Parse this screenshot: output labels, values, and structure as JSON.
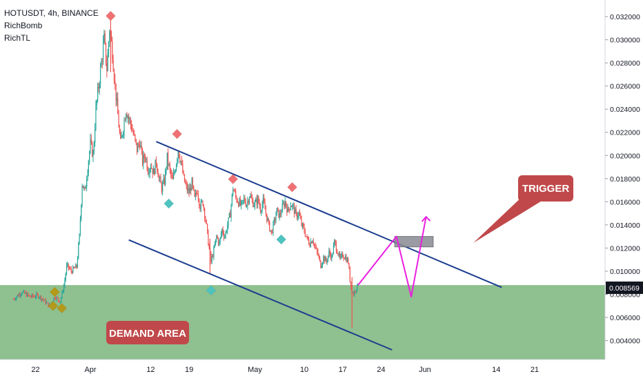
{
  "header": {
    "symbol_line": "HOTUSDT, 4h, BINANCE",
    "indicators": [
      "RichBomb",
      "RichTL"
    ]
  },
  "chart_data": {
    "type": "candlestick",
    "symbol": "HOTUSDT",
    "interval": "4h",
    "exchange": "BINANCE",
    "y_axis": {
      "min": 0.0032,
      "max": 0.0326,
      "ticks": [
        "0.032000",
        "0.030000",
        "0.028000",
        "0.026000",
        "0.024000",
        "0.022000",
        "0.020000",
        "0.018000",
        "0.016000",
        "0.014000",
        "0.012000",
        "0.010000",
        "0.008000",
        "0.006000",
        "0.004000"
      ]
    },
    "x_axis": {
      "ticks": [
        {
          "label": "22",
          "day": -10
        },
        {
          "label": "Apr",
          "day": 0
        },
        {
          "label": "12",
          "day": 11
        },
        {
          "label": "19",
          "day": 18
        },
        {
          "label": "May",
          "day": 30
        },
        {
          "label": "10",
          "day": 39
        },
        {
          "label": "17",
          "day": 46
        },
        {
          "label": "24",
          "day": 53
        },
        {
          "label": "Jun",
          "day": 61
        },
        {
          "label": "14",
          "day": 74
        },
        {
          "label": "21",
          "day": 81
        }
      ]
    },
    "current_price": "0.008569",
    "price_path": [
      [
        -14.0,
        0.0076
      ],
      [
        -12.5,
        0.0082
      ],
      [
        -11.0,
        0.0078
      ],
      [
        -9.5,
        0.0079
      ],
      [
        -8.5,
        0.0075
      ],
      [
        -7.5,
        0.007
      ],
      [
        -6.5,
        0.0078
      ],
      [
        -5.5,
        0.0074
      ],
      [
        -4.8,
        0.0088
      ],
      [
        -4.3,
        0.0105
      ],
      [
        -3.5,
        0.01
      ],
      [
        -2.5,
        0.0104
      ],
      [
        -2.0,
        0.013
      ],
      [
        -1.5,
        0.0176
      ],
      [
        -1.0,
        0.0168
      ],
      [
        -0.5,
        0.019
      ],
      [
        0.0,
        0.021
      ],
      [
        0.5,
        0.02
      ],
      [
        1.0,
        0.024
      ],
      [
        1.5,
        0.026
      ],
      [
        2.0,
        0.028
      ],
      [
        2.5,
        0.03
      ],
      [
        3.0,
        0.0275
      ],
      [
        3.5,
        0.031
      ],
      [
        4.0,
        0.029
      ],
      [
        4.5,
        0.026
      ],
      [
        5.0,
        0.0235
      ],
      [
        5.5,
        0.021
      ],
      [
        6.0,
        0.0225
      ],
      [
        6.5,
        0.024
      ],
      [
        7.0,
        0.0232
      ],
      [
        7.5,
        0.0225
      ],
      [
        8.0,
        0.0215
      ],
      [
        8.5,
        0.0205
      ],
      [
        9.0,
        0.0212
      ],
      [
        9.5,
        0.0195
      ],
      [
        10.0,
        0.02
      ],
      [
        10.5,
        0.0188
      ],
      [
        11.0,
        0.0192
      ],
      [
        11.5,
        0.0185
      ],
      [
        12.0,
        0.0195
      ],
      [
        12.5,
        0.018
      ],
      [
        13.0,
        0.0172
      ],
      [
        13.5,
        0.0178
      ],
      [
        14.0,
        0.0198
      ],
      [
        14.5,
        0.0186
      ],
      [
        15.0,
        0.0178
      ],
      [
        15.5,
        0.019
      ],
      [
        16.0,
        0.0205
      ],
      [
        16.5,
        0.0195
      ],
      [
        17.0,
        0.018
      ],
      [
        17.5,
        0.0172
      ],
      [
        18.0,
        0.0168
      ],
      [
        18.5,
        0.0176
      ],
      [
        19.0,
        0.0162
      ],
      [
        19.5,
        0.017
      ],
      [
        20.0,
        0.0156
      ],
      [
        20.5,
        0.016
      ],
      [
        21.0,
        0.0145
      ],
      [
        21.5,
        0.0125
      ],
      [
        22.0,
        0.0108
      ],
      [
        22.5,
        0.0118
      ],
      [
        23.0,
        0.013
      ],
      [
        23.5,
        0.0124
      ],
      [
        24.0,
        0.0136
      ],
      [
        24.5,
        0.013
      ],
      [
        25.0,
        0.014
      ],
      [
        25.5,
        0.015
      ],
      [
        26.0,
        0.0172
      ],
      [
        26.5,
        0.0164
      ],
      [
        27.0,
        0.016
      ],
      [
        27.5,
        0.0156
      ],
      [
        28.0,
        0.0162
      ],
      [
        28.5,
        0.0158
      ],
      [
        29.0,
        0.0166
      ],
      [
        29.5,
        0.016
      ],
      [
        30.0,
        0.0158
      ],
      [
        30.5,
        0.0162
      ],
      [
        31.0,
        0.0154
      ],
      [
        31.5,
        0.016
      ],
      [
        32.0,
        0.015
      ],
      [
        32.5,
        0.014
      ],
      [
        33.0,
        0.0133
      ],
      [
        33.5,
        0.0142
      ],
      [
        34.0,
        0.0152
      ],
      [
        34.5,
        0.0148
      ],
      [
        35.0,
        0.0155
      ],
      [
        35.5,
        0.016
      ],
      [
        36.0,
        0.0152
      ],
      [
        36.5,
        0.0158
      ],
      [
        37.0,
        0.0155
      ],
      [
        37.5,
        0.0148
      ],
      [
        38.0,
        0.015
      ],
      [
        38.5,
        0.014
      ],
      [
        39.0,
        0.0135
      ],
      [
        39.5,
        0.0128
      ],
      [
        40.0,
        0.0124
      ],
      [
        40.5,
        0.0128
      ],
      [
        41.0,
        0.012
      ],
      [
        41.5,
        0.0114
      ],
      [
        42.0,
        0.0105
      ],
      [
        42.5,
        0.0112
      ],
      [
        43.0,
        0.0108
      ],
      [
        43.5,
        0.0116
      ],
      [
        44.0,
        0.0112
      ],
      [
        44.5,
        0.0125
      ],
      [
        45.0,
        0.0118
      ],
      [
        45.5,
        0.011
      ],
      [
        46.0,
        0.0114
      ],
      [
        46.5,
        0.0112
      ],
      [
        47.0,
        0.0108
      ],
      [
        47.5,
        0.0085
      ],
      [
        48.0,
        0.008
      ],
      [
        48.5,
        0.0086
      ],
      [
        48.8,
        0.0088
      ]
    ],
    "extreme_wicks": [
      {
        "day": 3.7,
        "high": 0.0317,
        "low": 0.0272
      },
      {
        "day": 21.8,
        "high": 0.0128,
        "low": 0.0098
      },
      {
        "day": 47.7,
        "high": 0.0095,
        "low": 0.0051
      }
    ],
    "demand_area": {
      "label": "DEMAND AREA",
      "top": 0.0088,
      "bottom": 0.0032
    },
    "channel_upper": {
      "start": [
        12.0,
        0.0212
      ],
      "end": [
        75.0,
        0.0086
      ]
    },
    "channel_lower": {
      "start": [
        7.0,
        0.0127
      ],
      "end": [
        55.0,
        0.0032
      ]
    },
    "trigger_zone": {
      "day_start": 55.5,
      "day_end": 62.5,
      "top": 0.013,
      "bottom": 0.0121
    },
    "trigger_callout": {
      "label": "TRIGGER"
    },
    "projection_path": [
      [
        48.8,
        0.0088
      ],
      [
        55.8,
        0.013
      ],
      [
        58.5,
        0.0078
      ],
      [
        61.2,
        0.0147
      ]
    ],
    "signals": {
      "sell": [
        {
          "day": 3.7,
          "price": 0.0317
        },
        {
          "day": 15.8,
          "price": 0.0215
        },
        {
          "day": 26.0,
          "price": 0.0176
        },
        {
          "day": 36.8,
          "price": 0.0169
        }
      ],
      "buy": [
        {
          "day": 14.3,
          "price": 0.0162
        },
        {
          "day": 22.0,
          "price": 0.0087
        },
        {
          "day": 34.8,
          "price": 0.0131
        }
      ],
      "neutral": [
        {
          "day": -6.5,
          "price": 0.0082
        },
        {
          "day": -6.8,
          "price": 0.007
        },
        {
          "day": -5.2,
          "price": 0.0068
        }
      ]
    },
    "colors": {
      "up": "#26a69a",
      "down": "#ef5350",
      "demand_fill": "#8fc08f",
      "channel": "#1a3d8f",
      "projection": "#e91ee0",
      "sell_marker": "#f07173",
      "buy_marker": "#4fc3c0",
      "neutral_marker": "#b39a1a",
      "callout": "#c0484a",
      "trigger_zone": "#8a8a93",
      "price_label_bg": "#131722"
    }
  }
}
